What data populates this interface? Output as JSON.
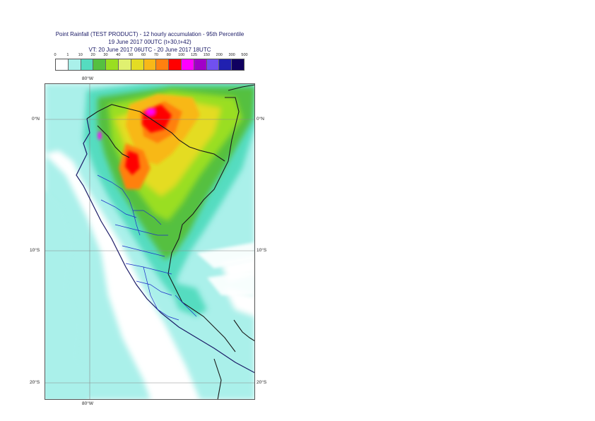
{
  "title": {
    "line1": "Point Rainfall (TEST PRODUCT) - 12 hourly accumulation - 95th Percentile",
    "line2": "19 June 2017 00UTC (t+30,t+42)",
    "line3": "VT: 20 June 2017 06UTC - 20 June 2017 18UTC"
  },
  "legend": {
    "ticks": [
      "0",
      "1",
      "10",
      "20",
      "30",
      "40",
      "50",
      "60",
      "70",
      "80",
      "100",
      "125",
      "150",
      "200",
      "300",
      "500"
    ],
    "colors": [
      "#ffffff",
      "#aaf0ea",
      "#55dcc0",
      "#55c040",
      "#9ade20",
      "#e0f070",
      "#e4dc24",
      "#f8b818",
      "#ff8010",
      "#ff0000",
      "#ff00ff",
      "#a000c8",
      "#7050f0",
      "#2020b0",
      "#100060"
    ]
  },
  "axes": {
    "lon_top": "80°W",
    "lon_bottom": "80°W",
    "lat_0_left": "0°N",
    "lat_0_right": "0°N",
    "lat_10_left": "10°S",
    "lat_10_right": "10°S",
    "lat_20_left": "20°S",
    "lat_20_right": "20°S"
  },
  "map": {
    "background_color": "#ffffff",
    "ocean_rain_color": "#aaf0ea",
    "border_color": "#1a1a1a",
    "region_color": "#1e2ec8",
    "grid_color": "#8a8a8a"
  }
}
